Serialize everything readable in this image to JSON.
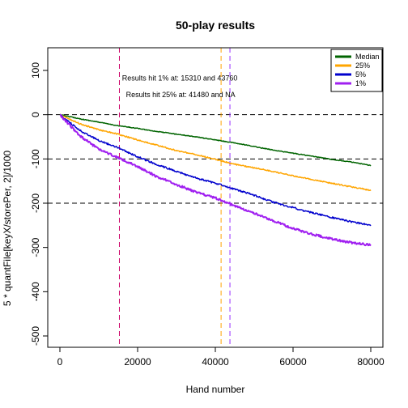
{
  "chart_data": {
    "type": "line",
    "title": "50-play results",
    "xlabel": "Hand number",
    "ylabel": "5 * quantFile[keyX/storePer, 2]/1000",
    "xlim": [
      0,
      80000
    ],
    "ylim": [
      -500,
      100
    ],
    "x_ticks": [
      0,
      20000,
      40000,
      60000,
      80000
    ],
    "x_tick_labels": [
      "0",
      "20000",
      "40000",
      "60000",
      "80000"
    ],
    "y_ticks": [
      -500,
      -400,
      -300,
      -200,
      -100,
      0,
      100
    ],
    "y_tick_labels": [
      "-500",
      "-400",
      "-300",
      "-200",
      "-100",
      "0",
      "100"
    ],
    "hlines": [
      0,
      -100,
      -200
    ],
    "vlines": [
      {
        "x": 15310,
        "color": "#cc0066"
      },
      {
        "x": 41480,
        "color": "#ffa500"
      },
      {
        "x": 43760,
        "color": "#9933ff"
      }
    ],
    "annotations": [
      {
        "text": "Results hit 1% at:  15310 and 43760",
        "x": 16000,
        "y": 77
      },
      {
        "text": "Results hit 25% at:  41480 and NA",
        "x": 17000,
        "y": 40
      }
    ],
    "legend": {
      "position": "top-right",
      "entries": [
        {
          "label": "Median",
          "color": "#006400"
        },
        {
          "label": "25%",
          "color": "#ffa500"
        },
        {
          "label": "5%",
          "color": "#0000cd"
        },
        {
          "label": "1%",
          "color": "#a020f0"
        }
      ]
    },
    "series": [
      {
        "name": "Median",
        "color": "#006400",
        "x": [
          0,
          5000,
          10000,
          15000,
          20000,
          25000,
          30000,
          35000,
          40000,
          45000,
          50000,
          55000,
          60000,
          65000,
          70000,
          75000,
          80000
        ],
        "y": [
          0,
          -9,
          -17,
          -25,
          -31,
          -38,
          -44,
          -50,
          -57,
          -64,
          -72,
          -80,
          -87,
          -94,
          -101,
          -107,
          -115
        ]
      },
      {
        "name": "25%",
        "color": "#ffa500",
        "x": [
          0,
          5000,
          10000,
          15000,
          20000,
          25000,
          30000,
          35000,
          40000,
          45000,
          50000,
          55000,
          60000,
          65000,
          70000,
          75000,
          80000
        ],
        "y": [
          0,
          -20,
          -34,
          -44,
          -57,
          -69,
          -81,
          -90,
          -101,
          -112,
          -120,
          -129,
          -138,
          -147,
          -155,
          -163,
          -171
        ]
      },
      {
        "name": "5%",
        "color": "#0000cd",
        "x": [
          0,
          5000,
          10000,
          15000,
          20000,
          25000,
          30000,
          35000,
          40000,
          45000,
          50000,
          55000,
          60000,
          65000,
          70000,
          75000,
          80000
        ],
        "y": [
          0,
          -35,
          -58,
          -75,
          -95,
          -113,
          -128,
          -143,
          -155,
          -168,
          -182,
          -198,
          -210,
          -222,
          -232,
          -242,
          -250
        ]
      },
      {
        "name": "1%",
        "color": "#a020f0",
        "x": [
          0,
          5000,
          10000,
          15000,
          20000,
          25000,
          30000,
          35000,
          40000,
          45000,
          50000,
          55000,
          60000,
          65000,
          70000,
          75000,
          80000
        ],
        "y": [
          0,
          -47,
          -78,
          -97,
          -117,
          -140,
          -158,
          -175,
          -188,
          -206,
          -223,
          -240,
          -257,
          -270,
          -281,
          -289,
          -295
        ]
      }
    ]
  }
}
